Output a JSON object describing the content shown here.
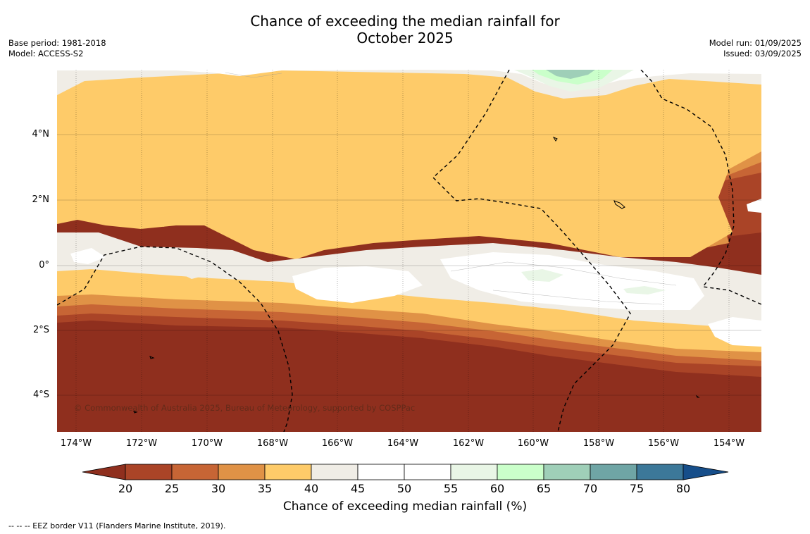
{
  "title": {
    "line1": "Chance of exceeding the median rainfall for",
    "line2": "October 2025"
  },
  "meta_left": {
    "base_period": "Base period: 1981-2018",
    "model": "Model: ACCESS-S2"
  },
  "meta_right": {
    "model_run": "Model run: 01/09/2025",
    "issued": "Issued: 03/09/2025"
  },
  "map": {
    "lat_ticks": [
      "4°N",
      "2°N",
      "0°",
      "2°S",
      "4°S"
    ],
    "lon_ticks": [
      "174°W",
      "172°W",
      "170°W",
      "168°W",
      "166°W",
      "164°W",
      "162°W",
      "160°W",
      "158°W",
      "156°W",
      "154°W"
    ],
    "copyright": "© Commonwealth of Australia 2025, Bureau of Meteorology, supported by COSPPac"
  },
  "colorbar": {
    "ticks": [
      "20",
      "25",
      "30",
      "35",
      "40",
      "45",
      "50",
      "55",
      "60",
      "65",
      "70",
      "75",
      "80"
    ],
    "colors": {
      "below_20": "#8f2f1e",
      "20_25": "#aa4427",
      "25_30": "#c76535",
      "30_35": "#e09246",
      "35_40": "#fecb69",
      "40_45": "#f0ede6",
      "45_50": "#ffffff",
      "50_55": "#ffffff",
      "55_60": "#e9f6e6",
      "60_65": "#caffca",
      "65_70": "#9fcfb8",
      "70_75": "#6fa5a5",
      "75_80": "#3c7899",
      "above_80": "#164e8a"
    },
    "label": "Chance of exceeding median rainfall (%)"
  },
  "legend_note": "--  --  -- EEZ border V11 (Flanders Marine Institute, 2019)."
}
